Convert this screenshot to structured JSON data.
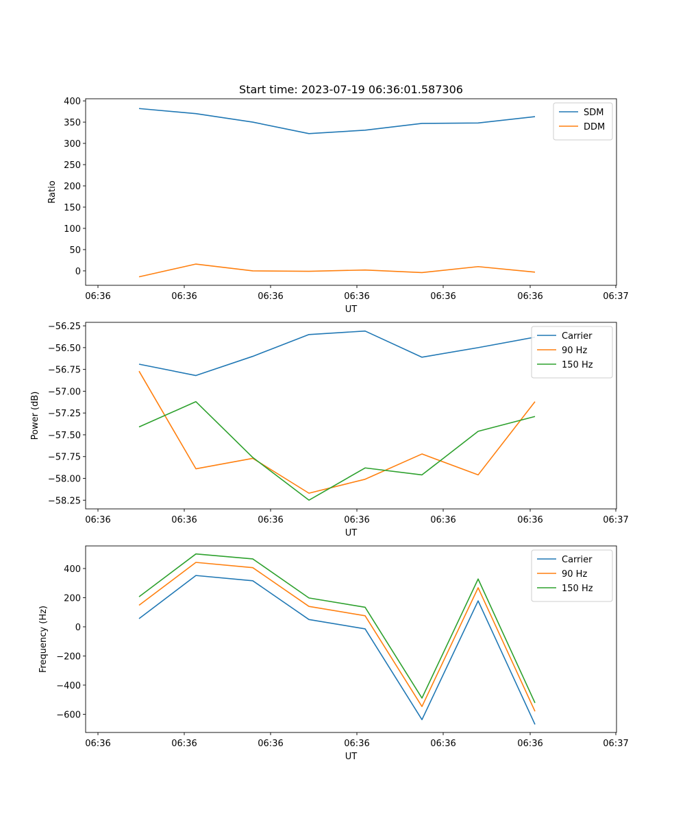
{
  "chart_data": [
    {
      "type": "line",
      "title": "Start time: 2023-07-19 06:36:01.587306",
      "xlabel": "UT",
      "ylabel": "Ratio",
      "xtick_labels": [
        "06:36",
        "06:36",
        "06:36",
        "06:36",
        "06:36",
        "06:36",
        "06:37"
      ],
      "yticks": [
        0,
        50,
        100,
        150,
        200,
        250,
        300,
        350,
        400
      ],
      "ylim": [
        -34,
        405
      ],
      "legend": "top-right",
      "series": [
        {
          "name": "SDM",
          "color": "#1f77b4",
          "values": [
            382,
            370,
            350,
            323,
            331,
            347,
            348,
            363
          ]
        },
        {
          "name": "DDM",
          "color": "#ff7f0e",
          "values": [
            -14,
            16,
            0,
            -1,
            2,
            -4,
            10,
            -3
          ]
        }
      ]
    },
    {
      "type": "line",
      "title": "",
      "xlabel": "UT",
      "ylabel": "Power (dB)",
      "xtick_labels": [
        "06:36",
        "06:36",
        "06:36",
        "06:36",
        "06:36",
        "06:36",
        "06:37"
      ],
      "yticks": [
        -58.25,
        -58.0,
        -57.75,
        -57.5,
        -57.25,
        -57.0,
        -56.75,
        -56.5,
        -56.25
      ],
      "ytick_labels": [
        "−58.25",
        "−58.00",
        "−57.75",
        "−57.50",
        "−57.25",
        "−57.00",
        "−56.75",
        "−56.50",
        "−56.25"
      ],
      "ylim": [
        -58.35,
        -56.21
      ],
      "legend": "top-right",
      "series": [
        {
          "name": "Carrier",
          "color": "#1f77b4",
          "values": [
            -56.69,
            -56.82,
            -56.6,
            -56.35,
            -56.31,
            -56.61,
            -56.5,
            -56.38
          ]
        },
        {
          "name": "90 Hz",
          "color": "#ff7f0e",
          "values": [
            -56.77,
            -57.89,
            -57.77,
            -58.17,
            -58.01,
            -57.72,
            -57.96,
            -57.12
          ]
        },
        {
          "name": "150 Hz",
          "color": "#2ca02c",
          "values": [
            -57.41,
            -57.12,
            -57.76,
            -58.25,
            -57.88,
            -57.96,
            -57.46,
            -57.29
          ]
        }
      ]
    },
    {
      "type": "line",
      "title": "",
      "xlabel": "UT",
      "ylabel": "Frequency (Hz)",
      "xtick_labels": [
        "06:36",
        "06:36",
        "06:36",
        "06:36",
        "06:36",
        "06:36",
        "06:37"
      ],
      "yticks": [
        -600,
        -400,
        -200,
        0,
        200,
        400
      ],
      "ytick_labels": [
        "−600",
        "−400",
        "−200",
        "0",
        "200",
        "400"
      ],
      "ylim": [
        -725,
        555
      ],
      "legend": "top-right",
      "series": [
        {
          "name": "Carrier",
          "color": "#1f77b4",
          "values": [
            56,
            352,
            316,
            50,
            -14,
            -637,
            178,
            -670
          ]
        },
        {
          "name": "90 Hz",
          "color": "#ff7f0e",
          "values": [
            148,
            442,
            406,
            140,
            76,
            -547,
            268,
            -580
          ]
        },
        {
          "name": "150 Hz",
          "color": "#2ca02c",
          "values": [
            206,
            500,
            466,
            198,
            134,
            -489,
            328,
            -522
          ]
        }
      ]
    }
  ]
}
